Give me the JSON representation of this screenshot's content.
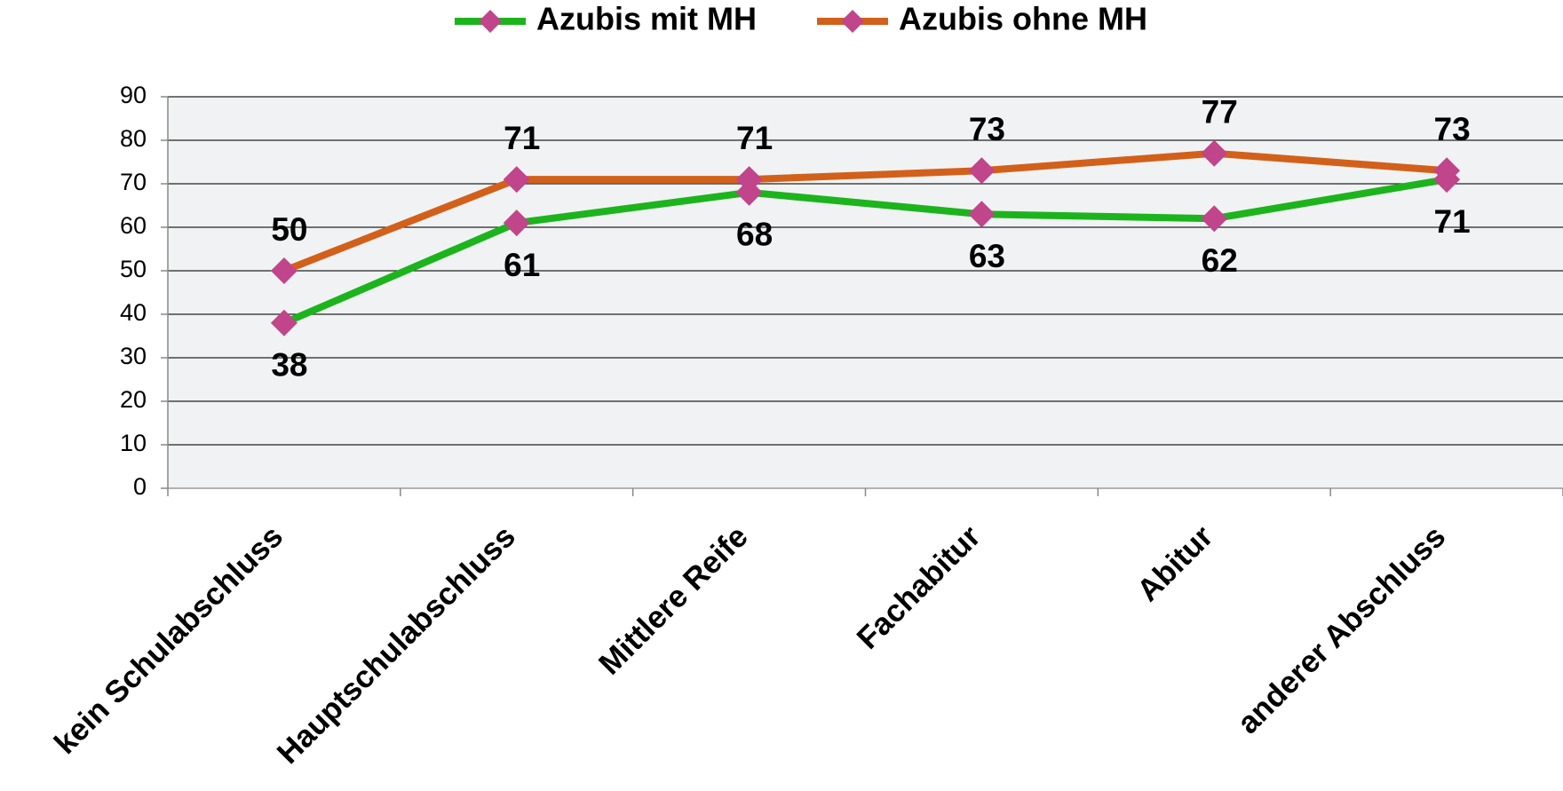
{
  "chart_data": {
    "type": "line",
    "categories": [
      "kein Schulabschluss",
      "Hauptschulabschluss",
      "Mittlere Reife",
      "Fachabitur",
      "Abitur",
      "anderer Abschluss"
    ],
    "series": [
      {
        "name": "Azubis mit MH",
        "color": "#1cb41c",
        "marker_color": "#c0458a",
        "values": [
          38,
          61,
          68,
          63,
          62,
          71
        ]
      },
      {
        "name": "Azubis ohne MH",
        "color": "#d2601a",
        "marker_color": "#c0458a",
        "values": [
          50,
          71,
          71,
          73,
          77,
          73
        ]
      }
    ],
    "ylim": [
      0,
      90
    ],
    "yticks": [
      0,
      10,
      20,
      30,
      40,
      50,
      60,
      70,
      80,
      90
    ],
    "grid": true
  }
}
